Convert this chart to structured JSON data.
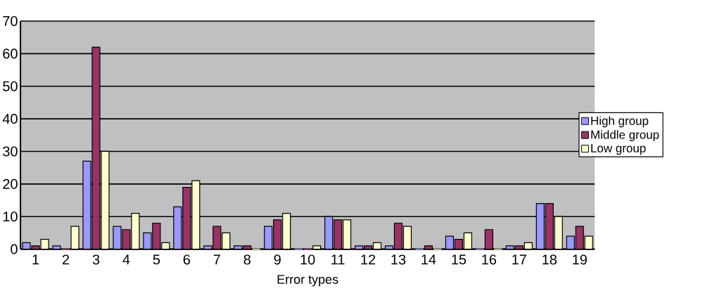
{
  "chart_data": {
    "type": "bar",
    "xlabel": "Error types",
    "categories": [
      "1",
      "2",
      "3",
      "4",
      "5",
      "6",
      "7",
      "8",
      "9",
      "10",
      "11",
      "12",
      "13",
      "14",
      "15",
      "16",
      "17",
      "18",
      "19"
    ],
    "series": [
      {
        "name": "High group",
        "color": "#9999ff",
        "values": [
          2,
          1,
          27,
          7,
          5,
          13,
          1,
          1,
          7,
          0,
          10,
          1,
          1,
          0,
          4,
          0,
          1,
          14,
          4
        ]
      },
      {
        "name": "Middle group",
        "color": "#993366",
        "values": [
          1,
          0,
          62,
          6,
          8,
          19,
          7,
          1,
          9,
          0,
          9,
          1,
          8,
          1,
          3,
          6,
          1,
          14,
          7
        ]
      },
      {
        "name": "Low group",
        "color": "#ffffcc",
        "values": [
          3,
          7,
          30,
          11,
          2,
          21,
          5,
          0,
          11,
          1,
          9,
          2,
          7,
          0,
          5,
          0,
          2,
          10,
          4
        ]
      }
    ],
    "ylim": [
      0,
      70
    ],
    "yticks": [
      0,
      10,
      20,
      30,
      40,
      50,
      60,
      70
    ],
    "grid": "y",
    "legend": "right"
  }
}
